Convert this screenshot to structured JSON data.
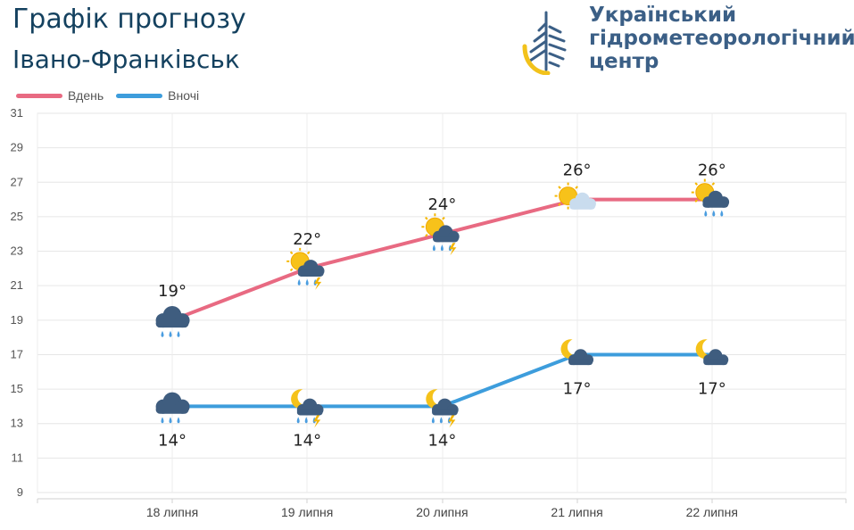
{
  "header": {
    "title": "Графік прогнозу",
    "city": "Івано-Франківськ",
    "org_line1": "Український",
    "org_line2": "гідрометеорологічний",
    "org_line3": "центр"
  },
  "colors": {
    "day": "#e86a82",
    "night": "#3d9ddc",
    "title": "#14415f",
    "org": "#3b5f86"
  },
  "chart_data": {
    "type": "line",
    "categories": [
      "18 липня",
      "19 липня",
      "20 липня",
      "21 липня",
      "22 липня"
    ],
    "series": [
      {
        "name": "Вдень",
        "values": [
          19,
          22,
          24,
          26,
          26
        ],
        "labels": [
          "19°",
          "22°",
          "24°",
          "26°",
          "26°"
        ],
        "icons": [
          "rain-cloud-icon",
          "sun-cloud-rain-thunder-icon",
          "sun-cloud-rain-thunder-icon",
          "sun-cloud-icon",
          "sun-cloud-rain-icon"
        ]
      },
      {
        "name": "Вночі",
        "values": [
          14,
          14,
          14,
          17,
          17
        ],
        "labels": [
          "14°",
          "14°",
          "14°",
          "17°",
          "17°"
        ],
        "icons": [
          "rain-cloud-icon",
          "moon-cloud-rain-thunder-icon",
          "moon-cloud-rain-thunder-icon",
          "moon-cloud-icon",
          "moon-cloud-icon"
        ]
      }
    ],
    "y_ticks": [
      "9",
      "11",
      "13",
      "15",
      "17",
      "19",
      "21",
      "23",
      "25",
      "27",
      "29",
      "31"
    ],
    "ylim": [
      9,
      31
    ],
    "grid": true,
    "legend": "top-left"
  }
}
